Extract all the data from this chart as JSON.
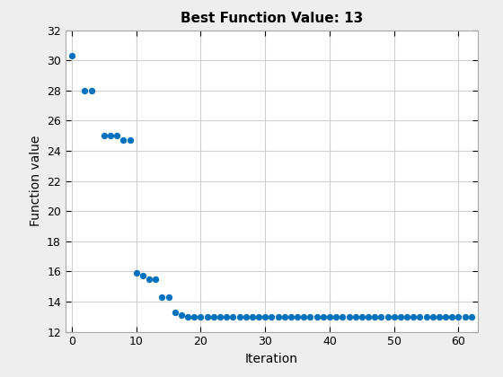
{
  "title": "Best Function Value: 13",
  "xlabel": "Iteration",
  "ylabel": "Function value",
  "xlim": [
    -1,
    63
  ],
  "ylim": [
    12,
    32
  ],
  "xticks": [
    0,
    10,
    20,
    30,
    40,
    50,
    60
  ],
  "yticks": [
    12,
    14,
    16,
    18,
    20,
    22,
    24,
    26,
    28,
    30,
    32
  ],
  "scatter_color": "#0072BD",
  "marker_size": 18,
  "background_color": "#eeeeee",
  "axes_background": "#ffffff",
  "grid_color": "#d0d0d0",
  "x": [
    0,
    2,
    3,
    5,
    6,
    7,
    8,
    9,
    10,
    11,
    12,
    13,
    14,
    15,
    16,
    17,
    18,
    19,
    20,
    21,
    22,
    23,
    24,
    25,
    26,
    27,
    28,
    29,
    30,
    31,
    32,
    33,
    34,
    35,
    36,
    37,
    38,
    39,
    40,
    41,
    42,
    43,
    44,
    45,
    46,
    47,
    48,
    49,
    50,
    51,
    52,
    53,
    54,
    55,
    56,
    57,
    58,
    59,
    60,
    61,
    62
  ],
  "y": [
    30.3,
    28.0,
    28.0,
    25.0,
    25.0,
    25.0,
    24.7,
    24.7,
    15.9,
    15.7,
    15.5,
    15.5,
    14.3,
    14.3,
    13.3,
    13.1,
    13.0,
    13.0,
    13.0,
    13.0,
    13.0,
    13.0,
    13.0,
    13.0,
    13.0,
    13.0,
    13.0,
    13.0,
    13.0,
    13.0,
    13.0,
    13.0,
    13.0,
    13.0,
    13.0,
    13.0,
    13.0,
    13.0,
    13.0,
    13.0,
    13.0,
    13.0,
    13.0,
    13.0,
    13.0,
    13.0,
    13.0,
    13.0,
    13.0,
    13.0,
    13.0,
    13.0,
    13.0,
    13.0,
    13.0,
    13.0,
    13.0,
    13.0,
    13.0,
    13.0,
    13.0
  ]
}
